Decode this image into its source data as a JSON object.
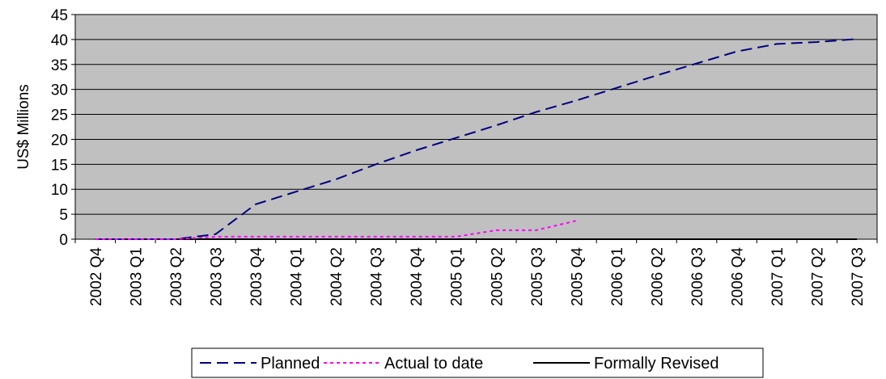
{
  "chart_data": {
    "type": "line",
    "title": "",
    "xlabel": "",
    "ylabel": "US$ Millions",
    "ylim": [
      0,
      45
    ],
    "yticks": [
      0,
      5,
      10,
      15,
      20,
      25,
      30,
      35,
      40,
      45
    ],
    "grid": "horizontal",
    "plot_background": "#c0c0c0",
    "legend_position": "bottom",
    "categories": [
      "2002 Q4",
      "2003 Q1",
      "2003 Q2",
      "2003 Q3",
      "2003 Q4",
      "2004 Q1",
      "2004 Q2",
      "2004 Q3",
      "2004 Q4",
      "2005 Q1",
      "2005 Q2",
      "2005 Q3",
      "2005 Q4",
      "2006 Q1",
      "2006 Q2",
      "2006 Q3",
      "2006 Q4",
      "2007 Q1",
      "2007 Q2",
      "2007 Q3"
    ],
    "series": [
      {
        "name": "Planned",
        "color": "#000080",
        "dash": "long-dash",
        "values": [
          0,
          0,
          0,
          1,
          7,
          9.5,
          12,
          15,
          17.8,
          20.3,
          22.8,
          25.5,
          27.8,
          30.3,
          32.8,
          35.2,
          37.6,
          39.1,
          39.5,
          40.1
        ]
      },
      {
        "name": "Actual to date",
        "color": "#ff00ff",
        "dash": "dot",
        "values": [
          0,
          0,
          0,
          0.5,
          0.5,
          0.5,
          0.5,
          0.5,
          0.5,
          0.5,
          1.8,
          1.8,
          3.7,
          null,
          null,
          null,
          null,
          null,
          null,
          null
        ]
      },
      {
        "name": "Formally Revised",
        "color": "#000000",
        "dash": "solid",
        "values": [
          0,
          0,
          0,
          0,
          0,
          0,
          0,
          0,
          0,
          0,
          0,
          0,
          0,
          0,
          0,
          0,
          0,
          0,
          0,
          0
        ]
      }
    ]
  }
}
